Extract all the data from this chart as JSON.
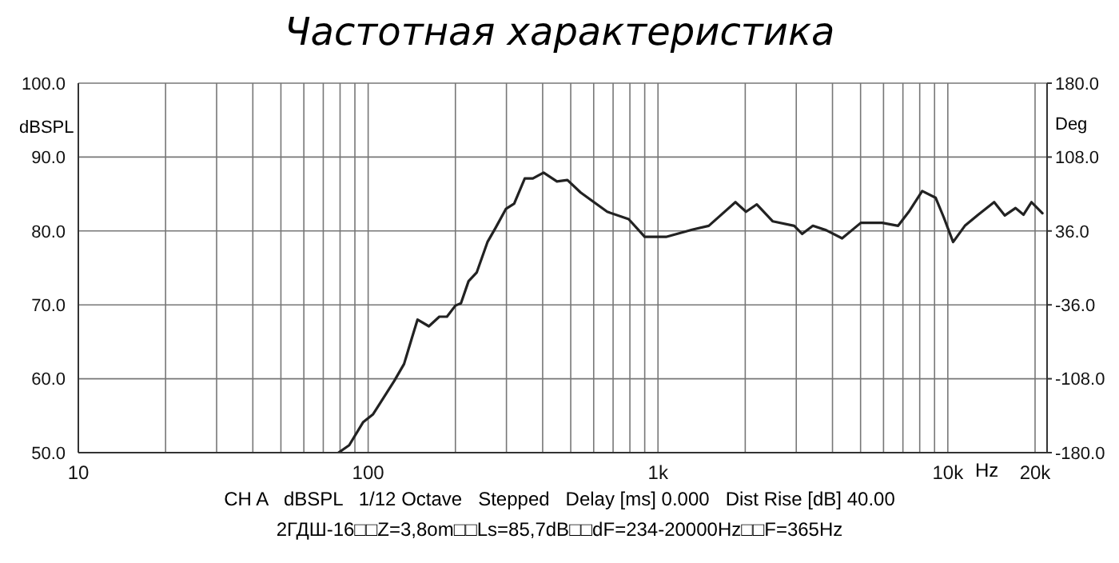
{
  "chart_data": {
    "type": "line",
    "title": "Частотная характеристика",
    "xlabel": "Hz",
    "ylabel": "dBSPL",
    "y2label": "Deg",
    "annotations": [
      "CH A   dBSPL   1/12 Octave   Stepped   Delay [ms] 0.000   Dist Rise [dB] 40.00",
      "2ГДШ-16□□Z=3,8om□□Ls=85,7dB□□dF=234-20000Hz□□F=365Hz"
    ],
    "log": "x",
    "grid": true,
    "legend": false,
    "marker": "none",
    "line_style": "solid",
    "xlim": [
      10,
      22000
    ],
    "xticks": [
      10,
      {
        "value": 20,
        "label": null
      },
      {
        "value": 30,
        "label": null
      },
      {
        "value": 40,
        "label": null
      },
      {
        "value": 50,
        "label": null
      },
      {
        "value": 60,
        "label": null
      },
      {
        "value": 70,
        "label": null
      },
      {
        "value": 80,
        "label": null
      },
      {
        "value": 90,
        "label": null
      },
      100,
      {
        "value": 200,
        "label": null
      },
      {
        "value": 300,
        "label": null
      },
      {
        "value": 400,
        "label": null
      },
      {
        "value": 500,
        "label": null
      },
      {
        "value": 600,
        "label": null
      },
      {
        "value": 700,
        "label": null
      },
      {
        "value": 800,
        "label": null
      },
      {
        "value": 900,
        "label": null
      },
      {
        "value": 1000,
        "label": "1k"
      },
      {
        "value": 2000,
        "label": null
      },
      {
        "value": 3000,
        "label": null
      },
      {
        "value": 4000,
        "label": null
      },
      {
        "value": 5000,
        "label": null
      },
      {
        "value": 6000,
        "label": null
      },
      {
        "value": 7000,
        "label": null
      },
      {
        "value": 8000,
        "label": null
      },
      {
        "value": 9000,
        "label": null
      },
      {
        "value": 10000,
        "label": "10k"
      },
      {
        "value": 20000,
        "label": "20k"
      }
    ],
    "ylim": [
      50,
      100
    ],
    "yticks": [
      {
        "value": 50,
        "label": "50.0"
      },
      {
        "value": 60,
        "label": "60.0"
      },
      {
        "value": 70,
        "label": "70.0"
      },
      {
        "value": 80,
        "label": "80.0"
      },
      {
        "value": 90,
        "label": "90.0"
      },
      {
        "value": 100,
        "label": "100.0"
      }
    ],
    "y2lim": [
      -180,
      180
    ],
    "y2ticks": [
      {
        "value": -180,
        "label": "-180.0"
      },
      {
        "value": -108,
        "label": "-108.0"
      },
      {
        "value": -36,
        "label": "-36.0"
      },
      {
        "value": 36,
        "label": "36.0"
      },
      {
        "value": 108,
        "label": "108.0"
      },
      {
        "value": 180,
        "label": "180.0"
      }
    ],
    "x": [
      79,
      86,
      96,
      104,
      123,
      133,
      142,
      148,
      162,
      176,
      187,
      200,
      209,
      222,
      237,
      258,
      275,
      299,
      319,
      347,
      370,
      403,
      448,
      487,
      541,
      668,
      792,
      900,
      1066,
      1318,
      1497,
      1850,
      2013,
      2193,
      2490,
      2951,
      3143,
      3423,
      3805,
      4318,
      5010,
      5934,
      6739,
      7336,
      8160,
      9074,
      9670,
      10430,
      11450,
      12730,
      14450,
      15730,
      17130,
      18250,
      19440,
      21200
    ],
    "series": [
      {
        "color": "#222222",
        "values": [
          50,
          51,
          54.1,
          55.2,
          59.7,
          62,
          65.7,
          68,
          67.1,
          68.4,
          68.4,
          69.9,
          70.2,
          73.2,
          74.4,
          78.5,
          80.4,
          83,
          83.7,
          87.1,
          87.1,
          87.9,
          86.7,
          86.9,
          85.2,
          82.6,
          81.6,
          79.2,
          79.2,
          80.2,
          80.7,
          83.9,
          82.6,
          83.6,
          81.3,
          80.7,
          79.6,
          80.7,
          80.1,
          79,
          81.1,
          81.1,
          80.7,
          82.6,
          85.4,
          84.5,
          81.9,
          78.5,
          80.7,
          82.2,
          83.9,
          82.1,
          83.1,
          82.2,
          83.9,
          82.4
        ]
      }
    ]
  }
}
